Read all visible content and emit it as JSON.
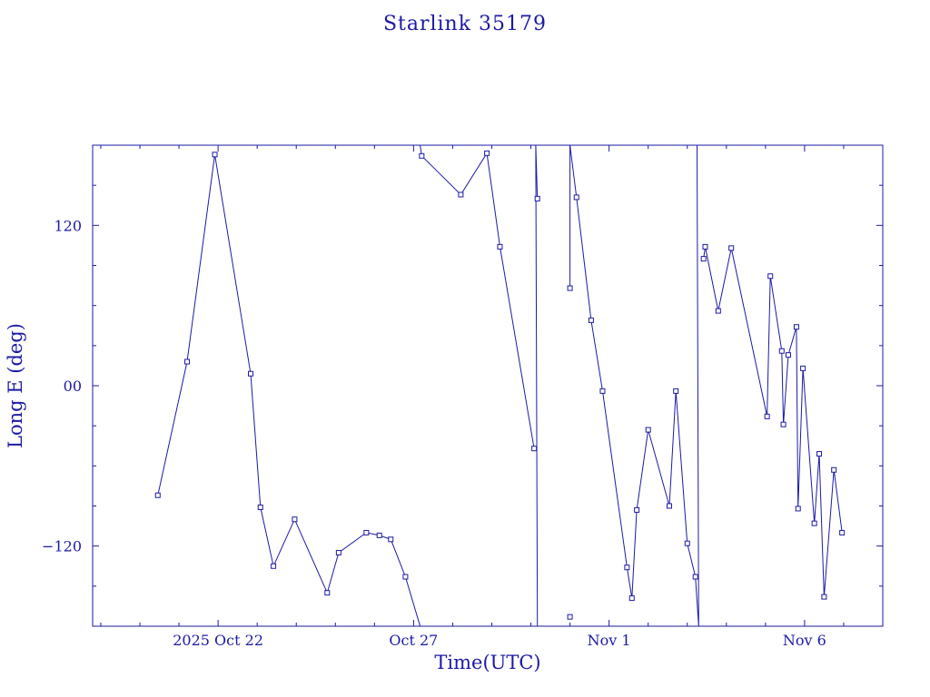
{
  "chart_data": {
    "type": "line",
    "title": "Starlink 35179",
    "xlabel": "Time(UTC)",
    "ylabel": "Long E (deg)",
    "ylim": [
      -180,
      180
    ],
    "xlim": [
      "2025-10-18 19:00",
      "2025-11-08 00:00"
    ],
    "yticks": [
      {
        "value": 120,
        "label": "120"
      },
      {
        "value": 0,
        "label": "00"
      },
      {
        "value": -120,
        "label": "−120"
      }
    ],
    "xticks": [
      {
        "value": "2025-10-22",
        "label": "2025 Oct 22"
      },
      {
        "value": "2025-10-27",
        "label": "Oct 27"
      },
      {
        "value": "2025-11-01",
        "label": "Nov  1"
      },
      {
        "value": "2025-11-06",
        "label": "Nov  6"
      }
    ],
    "grid": false,
    "series": [
      {
        "color": "#1a1aa6",
        "marker": "square",
        "points": [
          [
            "2025-10-20 11:00",
            -82
          ],
          [
            "2025-10-21 05:00",
            18
          ],
          [
            "2025-10-21 22:00",
            173
          ],
          [
            "2025-10-22 20:00",
            9
          ],
          [
            "2025-10-23 02:00",
            -91
          ],
          [
            "2025-10-23 10:00",
            -135
          ],
          [
            "2025-10-23 23:00",
            -100
          ],
          [
            "2025-10-24 19:00",
            -155
          ],
          [
            "2025-10-25 02:00",
            -125
          ],
          [
            "2025-10-25 19:00",
            -110
          ],
          [
            "2025-10-26 03:00",
            -112
          ],
          [
            "2025-10-26 10:00",
            -115
          ],
          [
            "2025-10-26 19:00",
            -143
          ],
          [
            "2025-10-27 04:00",
            -180
          ],
          [
            "2025-10-27 04:00",
            180
          ],
          [
            "2025-10-27 05:00",
            172
          ],
          [
            "2025-10-28 05:00",
            143
          ],
          [
            "2025-10-28 21:00",
            174
          ],
          [
            "2025-10-29 05:00",
            104
          ],
          [
            "2025-10-30 02:00",
            -47
          ],
          [
            "2025-10-30 04:00",
            -180
          ],
          [
            "2025-10-30 03:00",
            180
          ],
          [
            "2025-10-30 04:00",
            140
          ],
          [
            "2025-10-31 00:00",
            73
          ],
          [
            "2025-10-31 00:00",
            180
          ],
          [
            "2025-10-31 04:00",
            141
          ],
          [
            "2025-10-31 13:00",
            49
          ],
          [
            "2025-10-31 20:00",
            -4
          ],
          [
            "2025-11-01 11:00",
            -136
          ],
          [
            "2025-11-01 14:00",
            -159
          ],
          [
            "2025-11-01 17:00",
            -93
          ],
          [
            "2025-11-02 00:00",
            -33
          ],
          [
            "2025-11-02 13:00",
            -90
          ],
          [
            "2025-11-02 17:00",
            -4
          ],
          [
            "2025-11-03 00:00",
            -118
          ],
          [
            "2025-11-03 05:00",
            -143
          ],
          [
            "2025-11-03 07:00",
            -180
          ],
          [
            "2025-11-03 06:00",
            180
          ],
          [
            "2025-11-03 10:00",
            95
          ],
          [
            "2025-11-03 11:00",
            104
          ],
          [
            "2025-11-03 19:00",
            56
          ],
          [
            "2025-11-04 03:00",
            103
          ],
          [
            "2025-11-05 01:00",
            -23
          ],
          [
            "2025-11-05 03:00",
            82
          ],
          [
            "2025-11-05 10:00",
            26
          ],
          [
            "2025-11-05 11:00",
            -29
          ],
          [
            "2025-11-05 14:00",
            23
          ],
          [
            "2025-11-05 19:00",
            44
          ],
          [
            "2025-11-05 20:00",
            -92
          ],
          [
            "2025-11-05 23:00",
            13
          ],
          [
            "2025-11-06 06:00",
            -103
          ],
          [
            "2025-11-06 09:00",
            -51
          ],
          [
            "2025-11-06 12:00",
            -158
          ],
          [
            "2025-11-06 18:00",
            -63
          ],
          [
            "2025-11-06 23:00",
            -110
          ]
        ],
        "breaks_after": [
          13,
          19,
          22,
          37
        ],
        "isolated": [
          [
            "2025-10-31 00:00",
            -173
          ]
        ]
      }
    ]
  }
}
